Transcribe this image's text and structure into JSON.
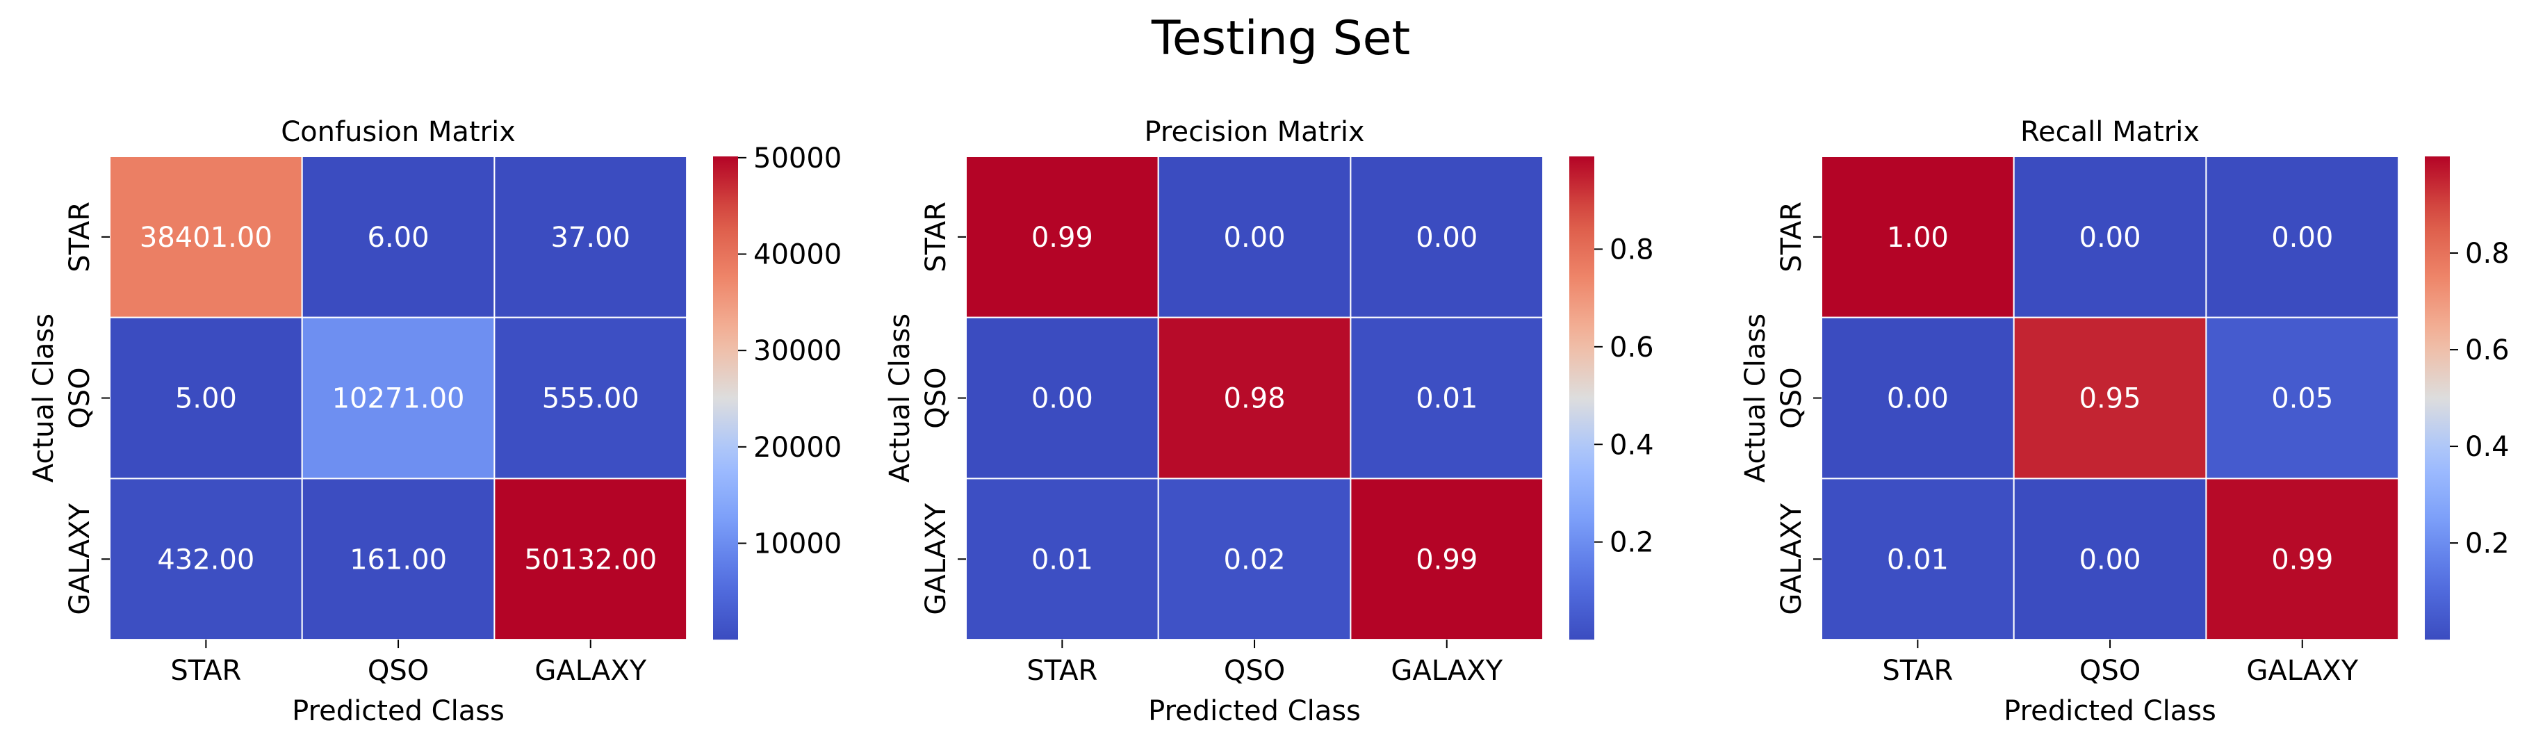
{
  "figure": {
    "title": "Testing Set"
  },
  "chart_data": [
    {
      "type": "heatmap",
      "title": "Confusion Matrix",
      "xlabel": "Predicted Class",
      "ylabel": "Actual Class",
      "x_categories": [
        "STAR",
        "QSO",
        "GALAXY"
      ],
      "y_categories": [
        "STAR",
        "QSO",
        "GALAXY"
      ],
      "values": [
        [
          38401,
          6,
          37
        ],
        [
          5,
          10271,
          555
        ],
        [
          432,
          161,
          50132
        ]
      ],
      "cell_labels": [
        [
          "38401.00",
          "6.00",
          "37.00"
        ],
        [
          "5.00",
          "10271.00",
          "555.00"
        ],
        [
          "432.00",
          "161.00",
          "50132.00"
        ]
      ],
      "vmin": 5,
      "vmax": 50132,
      "colormap": "coolwarm",
      "colorbar_ticks": [
        10000,
        20000,
        30000,
        40000,
        50000
      ],
      "colorbar_tick_labels": [
        "10000",
        "20000",
        "30000",
        "40000",
        "50000"
      ]
    },
    {
      "type": "heatmap",
      "title": "Precision Matrix",
      "xlabel": "Predicted Class",
      "ylabel": "Actual Class",
      "x_categories": [
        "STAR",
        "QSO",
        "GALAXY"
      ],
      "y_categories": [
        "STAR",
        "QSO",
        "GALAXY"
      ],
      "values": [
        [
          0.99,
          0.0,
          0.0
        ],
        [
          0.0,
          0.98,
          0.01
        ],
        [
          0.01,
          0.02,
          0.99
        ]
      ],
      "cell_labels": [
        [
          "0.99",
          "0.00",
          "0.00"
        ],
        [
          "0.00",
          "0.98",
          "0.01"
        ],
        [
          "0.01",
          "0.02",
          "0.99"
        ]
      ],
      "vmin": 0.0,
      "vmax": 0.99,
      "colormap": "coolwarm",
      "colorbar_ticks": [
        0.2,
        0.4,
        0.6,
        0.8
      ],
      "colorbar_tick_labels": [
        "0.2",
        "0.4",
        "0.6",
        "0.8"
      ]
    },
    {
      "type": "heatmap",
      "title": "Recall Matrix",
      "xlabel": "Predicted Class",
      "ylabel": "Actual Class",
      "x_categories": [
        "STAR",
        "QSO",
        "GALAXY"
      ],
      "y_categories": [
        "STAR",
        "QSO",
        "GALAXY"
      ],
      "values": [
        [
          1.0,
          0.0,
          0.0
        ],
        [
          0.0,
          0.95,
          0.05
        ],
        [
          0.01,
          0.0,
          0.99
        ]
      ],
      "cell_labels": [
        [
          "1.00",
          "0.00",
          "0.00"
        ],
        [
          "0.00",
          "0.95",
          "0.05"
        ],
        [
          "0.01",
          "0.00",
          "0.99"
        ]
      ],
      "vmin": 0.0,
      "vmax": 1.0,
      "colormap": "coolwarm",
      "colorbar_ticks": [
        0.2,
        0.4,
        0.6,
        0.8
      ],
      "colorbar_tick_labels": [
        "0.2",
        "0.4",
        "0.6",
        "0.8"
      ]
    }
  ]
}
